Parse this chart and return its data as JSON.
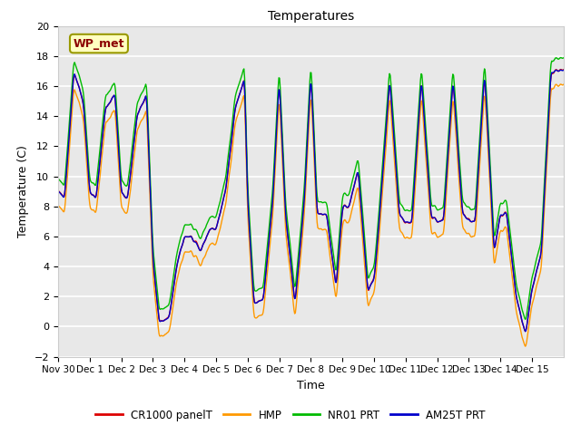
{
  "title": "Temperatures",
  "xlabel": "Time",
  "ylabel": "Temperature (C)",
  "ylim": [
    -2,
    20
  ],
  "background_color": "#ffffff",
  "plot_bg_color": "#e8e8e8",
  "grid_color": "#ffffff",
  "annotation_text": "WP_met",
  "annotation_color": "#8b0000",
  "annotation_bg": "#ffffc0",
  "annotation_border": "#999900",
  "series": [
    {
      "label": "CR1000 panelT",
      "color": "#dd0000"
    },
    {
      "label": "HMP",
      "color": "#ff9900"
    },
    {
      "label": "NR01 PRT",
      "color": "#00bb00"
    },
    {
      "label": "AM25T PRT",
      "color": "#0000cc"
    }
  ],
  "xtick_labels": [
    "Nov 30",
    "Dec 1",
    "Dec 2",
    "Dec 3",
    "Dec 4",
    "Dec 5",
    "Dec 6",
    "Dec 7",
    "Dec 8",
    "Dec 9",
    "Dec 10",
    "Dec 11",
    "Dec 12",
    "Dec 13",
    "Dec 14",
    "Dec 15"
  ],
  "figsize": [
    6.4,
    4.8
  ],
  "dpi": 100
}
